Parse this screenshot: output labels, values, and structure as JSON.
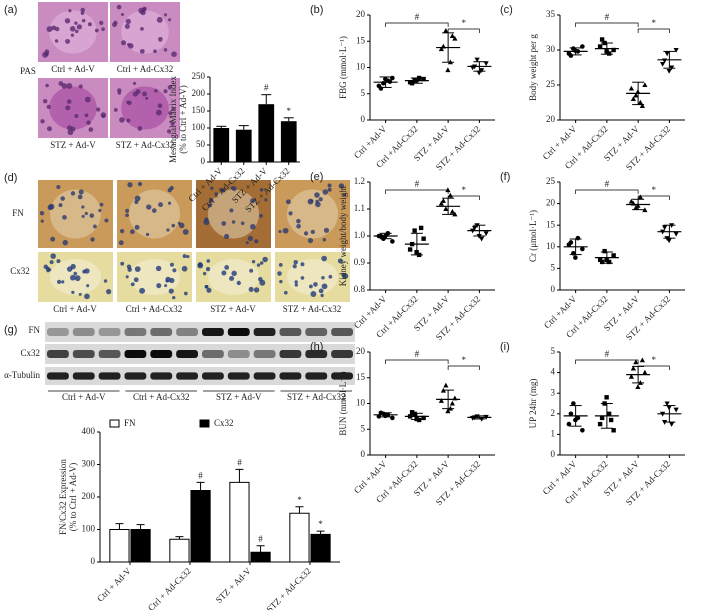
{
  "pas_panel": {
    "label": "(a)",
    "stain": "PAS",
    "captions": [
      "Ctrl + Ad-V",
      "Ctrl + Ad-Cx32",
      "STZ + Ad-V",
      "STZ + Ad-Cx32"
    ]
  },
  "ihc_panel": {
    "label": "(d)",
    "rows": [
      "FN",
      "Cx32"
    ],
    "captions": [
      "Ctrl + Ad-V",
      "Ctrl + Ad-Cx32",
      "STZ + Ad-V",
      "STZ + Ad-Cx32"
    ]
  },
  "blot_panel": {
    "label": "(g)",
    "rows": [
      "FN",
      "Cx32",
      "α-Tubulin"
    ],
    "groups": [
      "Ctrl + Ad-V",
      "Ctrl + Ad-Cx32",
      "STZ + Ad-V",
      "STZ + Ad-Cx32"
    ]
  },
  "chart_data": [
    {
      "type": "bar",
      "ylabel": [
        "Mesangial Matrix Index",
        "(% to Ctrl + Ad-V)"
      ],
      "categories": [
        "Ctrl + Ad-V",
        "Ctrl + Ad-Cx32",
        "STZ + Ad-V",
        "STZ + Ad-Cx32"
      ],
      "values": [
        100,
        95,
        170,
        120
      ],
      "errors": [
        5,
        12,
        28,
        10
      ],
      "color": "#000000",
      "ylim": [
        0,
        250
      ],
      "yticks": [
        0,
        50,
        100,
        150,
        200,
        250
      ],
      "annotations": [
        {
          "text": "#",
          "category": 2
        },
        {
          "text": "*",
          "category": 3
        }
      ]
    },
    {
      "type": "dot",
      "panel": "(b)",
      "ylabel": [
        "FBG (mmol·L⁻¹)"
      ],
      "categories": [
        "Ctrl +Ad-V",
        "Ctrl +Ad-Cx32",
        "STZ + Ad-V",
        "STZ + Ad-Cx32"
      ],
      "markers": [
        "circle",
        "square",
        "triangle",
        "triangle-down"
      ],
      "points": [
        [
          6.5,
          7.0,
          7.5,
          8.0,
          6.0,
          7.8,
          7.3
        ],
        [
          7.2,
          7.5,
          8.0,
          7.8,
          7.0,
          7.6
        ],
        [
          13.5,
          17.0,
          11.0,
          15.5,
          14.0,
          9.5,
          16.0
        ],
        [
          10.0,
          11.5,
          9.5,
          10.8,
          10.2,
          9.0
        ]
      ],
      "means": [
        7.2,
        7.5,
        13.8,
        10.2
      ],
      "sds": [
        1.0,
        0.5,
        2.8,
        0.9
      ],
      "ylim": [
        0,
        20
      ],
      "yticks": [
        0,
        5,
        10,
        15,
        20
      ],
      "annotations": [
        {
          "text": "#",
          "from": 0,
          "to": 2
        },
        {
          "text": "*",
          "from": 2,
          "to": 3
        }
      ]
    },
    {
      "type": "dot",
      "panel": "(c)",
      "ylabel": [
        "Body weight per g"
      ],
      "categories": [
        "Ctrl + Ad-V",
        "Ctrl + Ad-Cx32",
        "STZ + Ad-V",
        "STZ + Ad-Cx32"
      ],
      "markers": [
        "circle",
        "square",
        "triangle",
        "triangle-down"
      ],
      "points": [
        [
          29.5,
          30.2,
          29.8,
          30.5,
          29.2,
          29.9
        ],
        [
          30.5,
          31.0,
          29.5,
          30.0,
          31.5,
          29.8
        ],
        [
          24.5,
          23.5,
          22.5,
          25.0,
          23.0,
          24.0,
          22.0
        ],
        [
          28.0,
          29.5,
          27.5,
          30.0,
          28.5,
          27.0
        ]
      ],
      "means": [
        29.8,
        30.2,
        23.8,
        28.6
      ],
      "sds": [
        0.5,
        0.8,
        1.6,
        1.2
      ],
      "ylim": [
        20,
        35
      ],
      "yticks": [
        20,
        25,
        30,
        35
      ],
      "annotations": [
        {
          "text": "#",
          "from": 0,
          "to": 2
        },
        {
          "text": "*",
          "from": 2,
          "to": 3
        }
      ]
    },
    {
      "type": "dot",
      "panel": "(e)",
      "ylabel": [
        "Kidney weight/body weight"
      ],
      "categories": [
        "Ctrl +Ad-V",
        "Ctrl +Ad-Cx32",
        "STZ + Ad-V",
        "STZ + Ad-Cx32"
      ],
      "markers": [
        "circle",
        "square",
        "triangle",
        "triangle-down"
      ],
      "points": [
        [
          1.0,
          0.99,
          1.01,
          0.98,
          1.0,
          1.0
        ],
        [
          0.95,
          1.02,
          0.93,
          0.99,
          0.97,
          0.94,
          1.03
        ],
        [
          1.12,
          1.1,
          1.15,
          1.08,
          1.13,
          1.17,
          1.09
        ],
        [
          1.02,
          1.04,
          0.99,
          1.01,
          1.03,
          1.0
        ]
      ],
      "means": [
        1.0,
        0.97,
        1.11,
        1.02
      ],
      "sds": [
        0.01,
        0.04,
        0.03,
        0.02
      ],
      "ylim": [
        0.8,
        1.2
      ],
      "yticks": [
        0.8,
        0.9,
        {
          "value": 1.0,
          "label": "1.0"
        },
        1.1,
        1.2
      ],
      "annotations": [
        {
          "text": "#",
          "from": 0,
          "to": 2
        },
        {
          "text": "*",
          "from": 2,
          "to": 3
        }
      ]
    },
    {
      "type": "dot",
      "panel": "(f)",
      "ylabel": [
        "Cr (μmol·L⁻¹)"
      ],
      "categories": [
        "Ctrl +Ad-V",
        "Ctrl +Ad-Cx32",
        "STZ + Ad-V",
        "STZ + Ad-Cx32"
      ],
      "markers": [
        "circle",
        "square",
        "triangle",
        "triangle-down"
      ],
      "points": [
        [
          10.5,
          8.5,
          12.0,
          9.5,
          11.0,
          7.5
        ],
        [
          7.0,
          9.0,
          6.5,
          8.0,
          6.5,
          7.0
        ],
        [
          20.5,
          19.0,
          21.5,
          18.5,
          20.0,
          19.5
        ],
        [
          13.5,
          12.0,
          15.0,
          13.0,
          14.5,
          11.5
        ]
      ],
      "means": [
        10,
        7.5,
        19.8,
        13.5
      ],
      "sds": [
        1.8,
        1.3,
        1.2,
        1.5
      ],
      "ylim": [
        0,
        25
      ],
      "yticks": [
        0,
        5,
        10,
        15,
        20,
        25
      ],
      "annotations": [
        {
          "text": "#",
          "from": 0,
          "to": 2
        },
        {
          "text": "*",
          "from": 2,
          "to": 3
        }
      ]
    },
    {
      "type": "groupbar",
      "ylabel": [
        "FN/Cx32 Expression",
        "(% to Ctrl + Ad-V)"
      ],
      "categories": [
        "Ctrl + Ad-V",
        "Ctrl + Ad-Cx32",
        "STZ + Ad-V",
        "STZ + Ad-Cx32"
      ],
      "series": [
        {
          "name": "FN",
          "color": "#ffffff",
          "values": [
            100,
            70,
            245,
            150
          ],
          "errors": [
            18,
            8,
            40,
            20
          ]
        },
        {
          "name": "Cx32",
          "color": "#000000",
          "values": [
            100,
            220,
            30,
            85
          ],
          "errors": [
            15,
            25,
            20,
            10
          ]
        }
      ],
      "legend": "top",
      "ylim": [
        0,
        400
      ],
      "yticks": [
        0,
        100,
        200,
        300,
        400
      ],
      "annotations": [
        {
          "text": "#",
          "series": 1,
          "category": 1
        },
        {
          "text": "#",
          "series": 0,
          "category": 2
        },
        {
          "text": "#",
          "series": 1,
          "category": 2
        },
        {
          "text": "*",
          "series": 0,
          "category": 3
        },
        {
          "text": "*",
          "series": 1,
          "category": 3
        }
      ]
    },
    {
      "type": "dot",
      "panel": "(h)",
      "ylabel": [
        "BUN (mmol·L⁻¹)"
      ],
      "categories": [
        "Ctrl +Ad-V",
        "Ctrl +Ad-Cx32",
        "STZ + Ad-V",
        "STZ + Ad-Cx32"
      ],
      "markers": [
        "circle",
        "square",
        "triangle",
        "triangle-down"
      ],
      "points": [
        [
          7.5,
          8.0,
          7.8,
          7.2,
          8.2,
          7.6
        ],
        [
          7.5,
          8.0,
          6.8,
          7.2,
          8.3,
          7.0
        ],
        [
          10.5,
          13.5,
          9.0,
          11.0,
          12.5,
          8.5,
          10.0
        ],
        [
          7.2,
          7.5,
          7.0,
          7.4,
          7.3
        ]
      ],
      "means": [
        7.8,
        7.5,
        10.8,
        7.3
      ],
      "sds": [
        0.4,
        0.6,
        1.8,
        0.3
      ],
      "ylim": [
        0,
        20
      ],
      "yticks": [
        0,
        5,
        10,
        15,
        20
      ],
      "annotations": [
        {
          "text": "#",
          "from": 0,
          "to": 2
        },
        {
          "text": "*",
          "from": 2,
          "to": 3
        }
      ]
    },
    {
      "type": "dot",
      "panel": "(i)",
      "ylabel": [
        "UP 24hr (mg)"
      ],
      "categories": [
        "Ctrl + Ad-V",
        "Ctrl + Ad-Cx32",
        "STZ + Ad-V",
        "STZ + Ad-Cx32"
      ],
      "markers": [
        "circle",
        "square",
        "triangle",
        "triangle-down"
      ],
      "points": [
        [
          1.5,
          2.5,
          1.8,
          1.2,
          2.0,
          1.7
        ],
        [
          1.5,
          2.5,
          2.0,
          1.2,
          1.8,
          2.8,
          1.7
        ],
        [
          3.8,
          4.5,
          3.5,
          4.0,
          4.2,
          3.3,
          4.6
        ],
        [
          2.0,
          2.5,
          1.5,
          2.2,
          1.6,
          2.3
        ]
      ],
      "means": [
        1.9,
        1.9,
        3.9,
        2.0
      ],
      "sds": [
        0.5,
        0.6,
        0.4,
        0.4
      ],
      "ylim": [
        0,
        5
      ],
      "yticks": [
        0,
        1,
        2,
        3,
        4,
        5
      ],
      "annotations": [
        {
          "text": "#",
          "from": 0,
          "to": 2
        },
        {
          "text": "*",
          "from": 2,
          "to": 3
        }
      ]
    }
  ]
}
